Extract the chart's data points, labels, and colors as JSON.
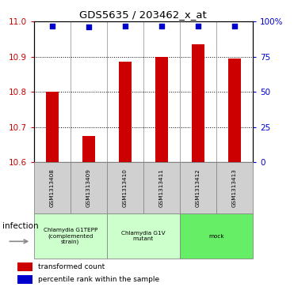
{
  "title": "GDS5635 / 203462_x_at",
  "samples": [
    "GSM1313408",
    "GSM1313409",
    "GSM1313410",
    "GSM1313411",
    "GSM1313412",
    "GSM1313413"
  ],
  "bar_values": [
    10.8,
    10.675,
    10.885,
    10.9,
    10.935,
    10.895
  ],
  "percentile_values": [
    97,
    96,
    97,
    97,
    97,
    97
  ],
  "bar_color": "#CC0000",
  "dot_color": "#0000CC",
  "ylim_left": [
    10.6,
    11.0
  ],
  "ylim_right": [
    0,
    100
  ],
  "yticks_left": [
    10.6,
    10.7,
    10.8,
    10.9,
    11.0
  ],
  "yticks_right": [
    0,
    25,
    50,
    75,
    100
  ],
  "ytick_labels_right": [
    "0",
    "25",
    "50",
    "75",
    "100%"
  ],
  "groups": [
    {
      "label": "Chlamydia G1TEPP\n(complemented\nstrain)",
      "start": 0,
      "end": 2,
      "color": "#ccffcc"
    },
    {
      "label": "Chlamydia G1V\nmutant",
      "start": 2,
      "end": 4,
      "color": "#ccffcc"
    },
    {
      "label": "mock",
      "start": 4,
      "end": 6,
      "color": "#66ee66"
    }
  ],
  "factor_label": "infection",
  "legend_items": [
    {
      "label": "transformed count",
      "color": "#CC0000"
    },
    {
      "label": "percentile rank within the sample",
      "color": "#0000CC"
    }
  ],
  "bar_width": 0.35,
  "background_color": "#ffffff",
  "tick_color_left": "#CC0000",
  "tick_color_right": "#0000CC",
  "sample_box_color": "#d0d0d0",
  "sample_box_edge": "#888888"
}
